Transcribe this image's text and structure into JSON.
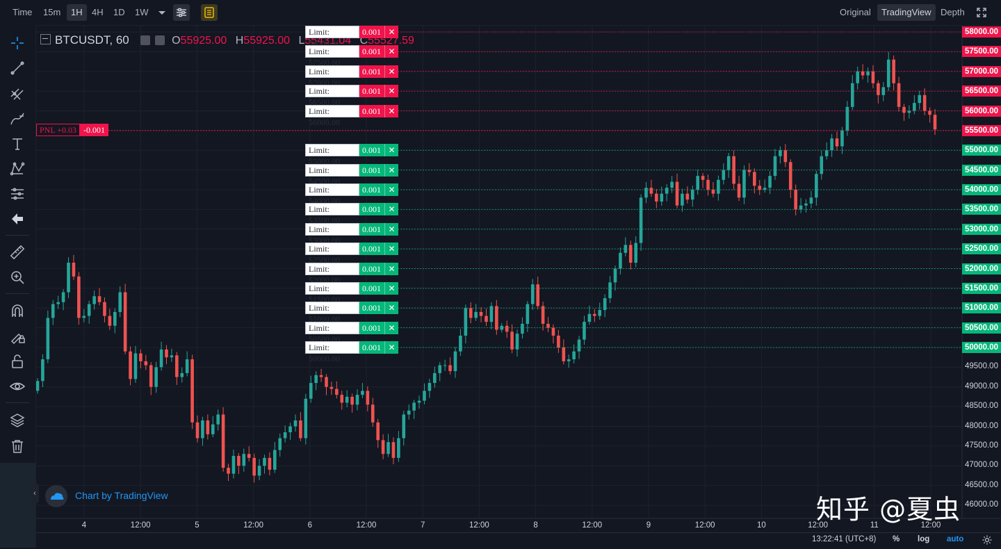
{
  "toolbar": {
    "intervals": [
      "Time",
      "15m",
      "1H",
      "4H",
      "1D",
      "1W"
    ],
    "active_interval": "1H",
    "views": [
      "Original",
      "TradingView",
      "Depth"
    ],
    "active_view": "TradingView"
  },
  "legend": {
    "symbol": "BTCUSDT, 60",
    "o_label": "O",
    "o_value": "55925.00",
    "h_label": "H",
    "h_value": "55925.00",
    "l_label": "L",
    "l_value": "55431.04",
    "c_label": "C",
    "c_value": "55527.59"
  },
  "pnl": {
    "label": "PNL +0.03",
    "qty": "-0.001"
  },
  "branding": {
    "text": "Chart by TradingView"
  },
  "watermark": {
    "text": "知乎 @夏虫"
  },
  "status": {
    "time": "13:22:41 (UTC+8)",
    "percent": "%",
    "log": "log",
    "auto": "auto"
  },
  "colors": {
    "up": "#26a69a",
    "down": "#ef5350",
    "sell_order": "#f0144b",
    "buy_order": "#06b77a",
    "background": "#131722"
  },
  "chart_data": {
    "type": "candlestick",
    "symbol": "BTCUSDT",
    "interval": "60",
    "ylim": [
      45850,
      58400
    ],
    "y_ticks": [
      "58000.00",
      "57500.00",
      "57000.00",
      "56500.00",
      "56000.00",
      "55500.00",
      "55000.00",
      "54500.00",
      "54000.00",
      "53500.00",
      "53000.00",
      "52500.00",
      "52000.00",
      "51500.00",
      "51000.00",
      "50500.00",
      "50000.00",
      "49500.00",
      "49000.00",
      "48500.00",
      "48000.00",
      "47500.00",
      "47000.00",
      "46500.00",
      "46000.00"
    ],
    "x_ticks": [
      "4",
      "12:00",
      "5",
      "12:00",
      "6",
      "12:00",
      "7",
      "12:00",
      "8",
      "12:00",
      "9",
      "12:00",
      "10",
      "12:00",
      "11",
      "12:00"
    ],
    "last_price": "55500.00",
    "orders": [
      {
        "side": "sell",
        "label": "Limit: 58000.00",
        "price": 58000,
        "price_label": "58000.00",
        "qty": "0.001",
        "x": "✕"
      },
      {
        "side": "sell",
        "label": "Limit: 57500.00",
        "price": 57500,
        "price_label": "57500.00",
        "qty": "0.001",
        "x": "✕"
      },
      {
        "side": "sell",
        "label": "Limit: 57000.00",
        "price": 57000,
        "price_label": "57000.00",
        "qty": "0.001",
        "x": "✕"
      },
      {
        "side": "sell",
        "label": "Limit: 56500.00",
        "price": 56500,
        "price_label": "56500.00",
        "qty": "0.001",
        "x": "✕"
      },
      {
        "side": "sell",
        "label": "Limit: 56000.00",
        "price": 56000,
        "price_label": "56000.00",
        "qty": "0.001",
        "x": "✕"
      },
      {
        "side": "buy",
        "label": "Limit: 55000.00",
        "price": 55000,
        "price_label": "55000.00",
        "qty": "0.001",
        "x": "✕"
      },
      {
        "side": "buy",
        "label": "Limit: 54500.00",
        "price": 54500,
        "price_label": "54500.00",
        "qty": "0.001",
        "x": "✕"
      },
      {
        "side": "buy",
        "label": "Limit: 54000.00",
        "price": 54000,
        "price_label": "54000.00",
        "qty": "0.001",
        "x": "✕"
      },
      {
        "side": "buy",
        "label": "Limit: 53500.00",
        "price": 53500,
        "price_label": "53500.00",
        "qty": "0.001",
        "x": "✕"
      },
      {
        "side": "buy",
        "label": "Limit: 53000.00",
        "price": 53000,
        "price_label": "53000.00",
        "qty": "0.001",
        "x": "✕"
      },
      {
        "side": "buy",
        "label": "Limit: 52500.00",
        "price": 52500,
        "price_label": "52500.00",
        "qty": "0.001",
        "x": "✕"
      },
      {
        "side": "buy",
        "label": "Limit: 52000.00",
        "price": 52000,
        "price_label": "52000.00",
        "qty": "0.001",
        "x": "✕"
      },
      {
        "side": "buy",
        "label": "Limit: 51500.00",
        "price": 51500,
        "price_label": "51500.00",
        "qty": "0.001",
        "x": "✕"
      },
      {
        "side": "buy",
        "label": "Limit: 51000.00",
        "price": 51000,
        "price_label": "51000.00",
        "qty": "0.001",
        "x": "✕"
      },
      {
        "side": "buy",
        "label": "Limit: 50500.00",
        "price": 50500,
        "price_label": "50500.00",
        "qty": "0.001",
        "x": "✕"
      },
      {
        "side": "buy",
        "label": "Limit: 50000.00",
        "price": 50000,
        "price_label": "50000.00",
        "qty": "0.001",
        "x": "✕"
      }
    ],
    "closes": [
      49150,
      49700,
      50750,
      51100,
      51150,
      51400,
      52150,
      51800,
      50750,
      50800,
      51100,
      51300,
      51150,
      50800,
      50550,
      50900,
      51400,
      49900,
      49200,
      49850,
      49650,
      49550,
      49000,
      49500,
      49950,
      49750,
      49800,
      49250,
      49350,
      49700,
      48100,
      47700,
      48150,
      47800,
      48050,
      48300,
      46950,
      46800,
      47250,
      47000,
      47300,
      47200,
      46750,
      47000,
      47200,
      46900,
      47400,
      47700,
      47850,
      48000,
      48150,
      47700,
      48700,
      49100,
      49300,
      49250,
      49000,
      48950,
      48800,
      48600,
      48750,
      48550,
      48800,
      48900,
      48550,
      48100,
      47650,
      47300,
      47600,
      47200,
      47700,
      48300,
      48400,
      48600,
      48650,
      48900,
      49100,
      49350,
      49550,
      49550,
      49400,
      49900,
      50300,
      51000,
      50750,
      50900,
      50800,
      50650,
      51050,
      50450,
      50550,
      50400,
      49950,
      50350,
      50600,
      51100,
      51600,
      51050,
      50600,
      50500,
      50300,
      50000,
      49650,
      49700,
      49900,
      50200,
      50650,
      50850,
      50800,
      50950,
      51250,
      51650,
      52000,
      52400,
      52600,
      52150,
      52650,
      53800,
      54050,
      53900,
      53700,
      53900,
      54050,
      54200,
      53600,
      53900,
      53750,
      54000,
      54350,
      54250,
      54000,
      53900,
      54250,
      54500,
      54850,
      54150,
      53800,
      54500,
      54450,
      54100,
      54000,
      54050,
      54350,
      54850,
      55000,
      54700,
      54000,
      53500,
      53600,
      53650,
      53800,
      54400,
      54850,
      55000,
      55300,
      55100,
      55500,
      56100,
      56700,
      57000,
      56900,
      57000,
      56700,
      56400,
      56600,
      57300,
      56700,
      56100,
      55950,
      56000,
      56200,
      56400,
      56000,
      55900,
      55527
    ]
  }
}
